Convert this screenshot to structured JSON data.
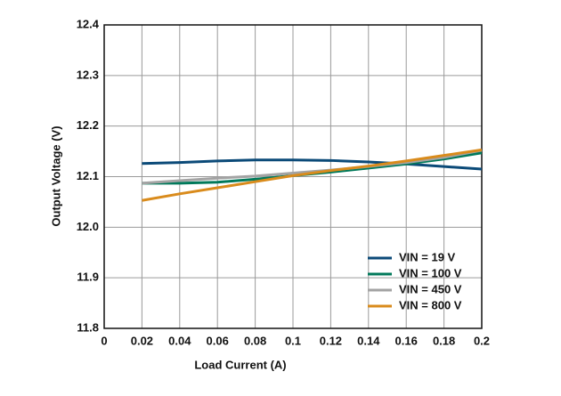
{
  "chart_data": {
    "type": "line",
    "x_label": "Load Current (A)",
    "y_label": "Output Voltage (V)",
    "x": [
      0.02,
      0.04,
      0.06,
      0.08,
      0.1,
      0.12,
      0.14,
      0.16,
      0.18,
      0.2
    ],
    "series": [
      {
        "name": "VIN = 19 V",
        "color": "#0b4a78",
        "values": [
          12.126,
          12.128,
          12.131,
          12.133,
          12.133,
          12.132,
          12.129,
          12.125,
          12.12,
          12.115
        ]
      },
      {
        "name": "VIN = 100 V",
        "color": "#00795a",
        "values": [
          12.087,
          12.087,
          12.089,
          12.095,
          12.102,
          12.109,
          12.117,
          12.125,
          12.135,
          12.147
        ]
      },
      {
        "name": "VIN = 450 V",
        "color": "#a3a3a3",
        "values": [
          12.087,
          12.092,
          12.097,
          12.101,
          12.107,
          12.113,
          12.12,
          12.128,
          12.138,
          12.152
        ]
      },
      {
        "name": "VIN = 800 V",
        "color": "#d98b1c",
        "values": [
          12.053,
          12.066,
          12.078,
          12.09,
          12.102,
          12.112,
          12.121,
          12.131,
          12.142,
          12.153
        ]
      }
    ],
    "xlim": [
      0,
      0.2
    ],
    "xticks": [
      0,
      0.02,
      0.04,
      0.06,
      0.08,
      0.1,
      0.12,
      0.14,
      0.16,
      0.18,
      0.2
    ],
    "ylim": [
      11.8,
      12.4
    ],
    "yticks": [
      11.8,
      11.9,
      {
        "value": 12,
        "label": "12.0"
      },
      12.1,
      12.2,
      12.3,
      12.4
    ],
    "grid": true,
    "legend": "lower-right"
  }
}
